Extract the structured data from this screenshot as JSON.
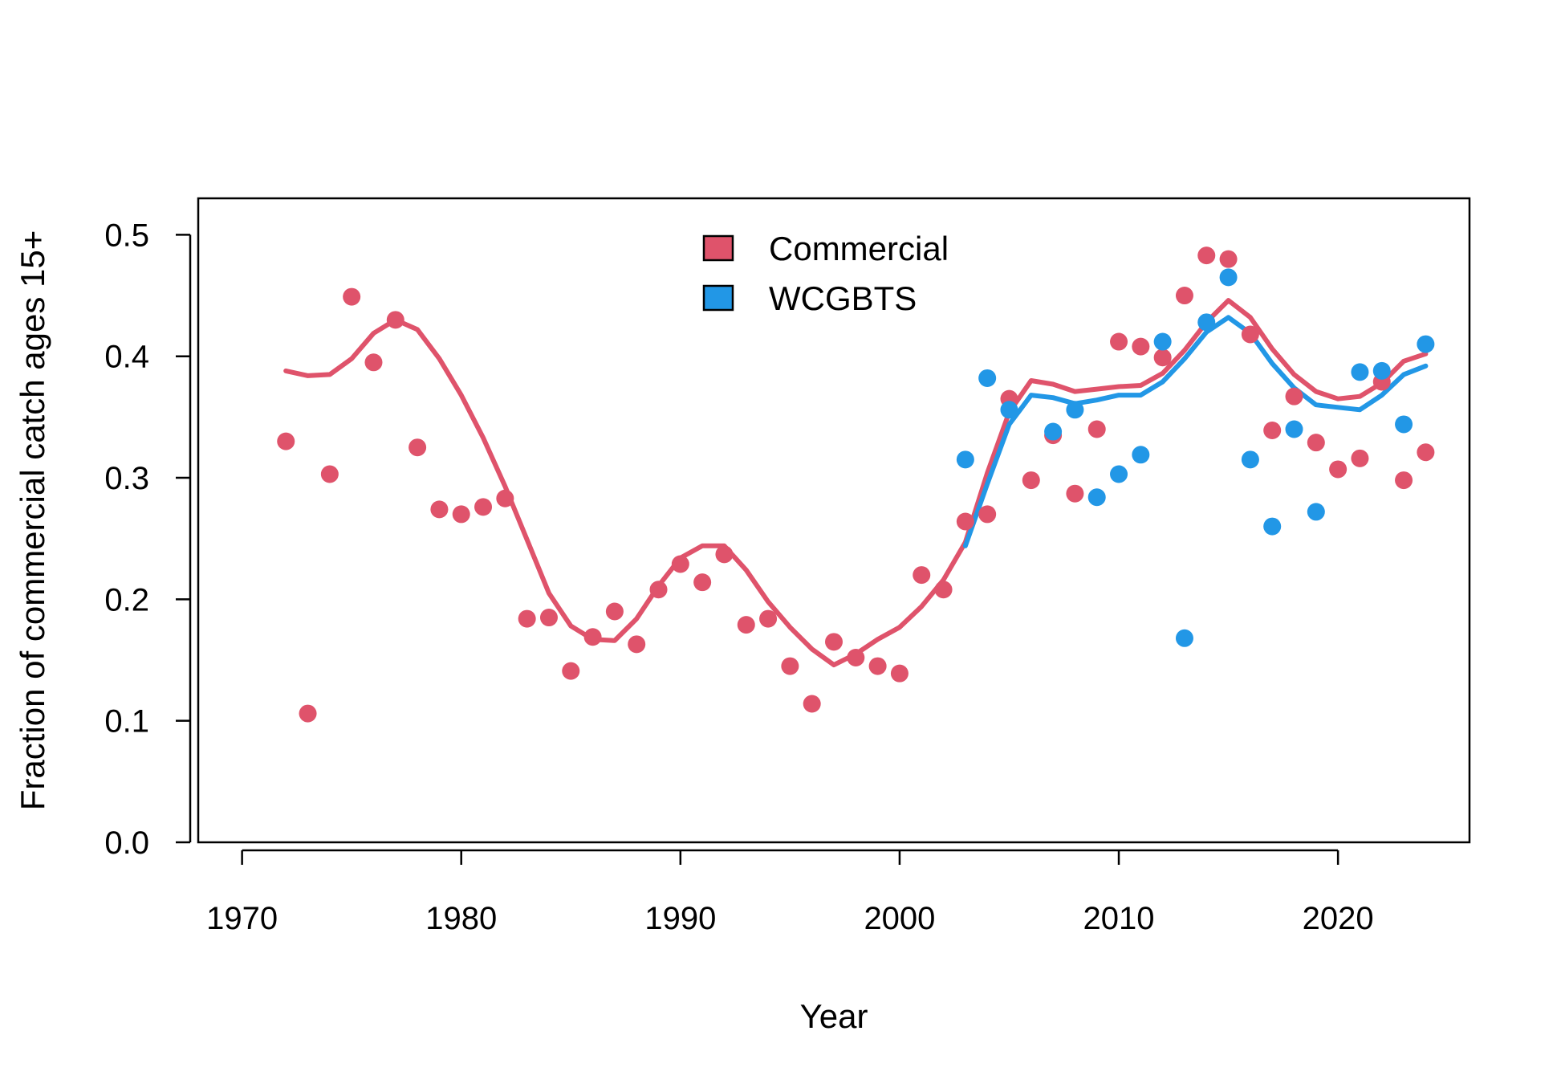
{
  "chart_data": {
    "type": "scatter",
    "title": "",
    "xlabel": "Year",
    "ylabel": "Fraction of commercial catch ages 15+",
    "xlim": [
      1968,
      2026
    ],
    "ylim": [
      0,
      0.53
    ],
    "xticks": [
      1970,
      1980,
      1990,
      2000,
      2010,
      2020
    ],
    "yticks": [
      "0.0",
      "0.1",
      "0.2",
      "0.3",
      "0.4",
      "0.5"
    ],
    "grid": false,
    "legend_position": "top-center",
    "series": [
      {
        "name": "Commercial",
        "color": "#df536b",
        "points": {
          "x": [
            1972,
            1973,
            1974,
            1975,
            1976,
            1977,
            1978,
            1979,
            1980,
            1981,
            1982,
            1983,
            1984,
            1985,
            1986,
            1987,
            1988,
            1989,
            1990,
            1991,
            1992,
            1993,
            1994,
            1995,
            1996,
            1997,
            1998,
            1999,
            2000,
            2001,
            2002,
            2003,
            2004,
            2005,
            2006,
            2007,
            2008,
            2009,
            2010,
            2011,
            2012,
            2013,
            2014,
            2015,
            2016,
            2017,
            2018,
            2019,
            2020,
            2021,
            2022,
            2023,
            2024
          ],
          "y": [
            0.33,
            0.106,
            0.303,
            0.449,
            0.395,
            0.43,
            0.325,
            0.274,
            0.27,
            0.276,
            0.283,
            0.184,
            0.185,
            0.141,
            0.169,
            0.19,
            0.163,
            0.208,
            0.229,
            0.214,
            0.237,
            0.179,
            0.184,
            0.145,
            0.114,
            0.165,
            0.152,
            0.145,
            0.139,
            0.22,
            0.208,
            0.264,
            0.27,
            0.365,
            0.298,
            0.335,
            0.287,
            0.34,
            0.412,
            0.408,
            0.399,
            0.45,
            0.483,
            0.48,
            0.418,
            0.339,
            0.367,
            0.329,
            0.307,
            0.316,
            0.379,
            0.298,
            0.321
          ]
        },
        "fit": {
          "x": [
            1972,
            1973,
            1974,
            1975,
            1976,
            1977,
            1978,
            1979,
            1980,
            1981,
            1982,
            1983,
            1984,
            1985,
            1986,
            1987,
            1988,
            1989,
            1990,
            1991,
            1992,
            1993,
            1994,
            1995,
            1996,
            1997,
            1998,
            1999,
            2000,
            2001,
            2002,
            2003,
            2004,
            2005,
            2006,
            2007,
            2008,
            2009,
            2010,
            2011,
            2012,
            2013,
            2014,
            2015,
            2016,
            2017,
            2018,
            2019,
            2020,
            2021,
            2022,
            2023,
            2024
          ],
          "y": [
            0.388,
            0.384,
            0.385,
            0.398,
            0.419,
            0.43,
            0.422,
            0.398,
            0.368,
            0.333,
            0.293,
            0.249,
            0.205,
            0.178,
            0.167,
            0.166,
            0.184,
            0.211,
            0.234,
            0.244,
            0.244,
            0.224,
            0.198,
            0.177,
            0.159,
            0.146,
            0.155,
            0.167,
            0.177,
            0.194,
            0.216,
            0.247,
            0.304,
            0.354,
            0.38,
            0.377,
            0.371,
            0.373,
            0.375,
            0.376,
            0.386,
            0.405,
            0.428,
            0.446,
            0.432,
            0.406,
            0.385,
            0.371,
            0.365,
            0.367,
            0.378,
            0.396,
            0.402
          ]
        }
      },
      {
        "name": "WCGBTS",
        "color": "#2297e6",
        "points": {
          "x": [
            2003,
            2004,
            2005,
            2007,
            2008,
            2009,
            2010,
            2011,
            2012,
            2013,
            2014,
            2015,
            2016,
            2017,
            2018,
            2019,
            2021,
            2022,
            2023,
            2024
          ],
          "y": [
            0.315,
            0.382,
            0.356,
            0.338,
            0.356,
            0.284,
            0.303,
            0.319,
            0.412,
            0.168,
            0.428,
            0.465,
            0.315,
            0.26,
            0.34,
            0.272,
            0.387,
            0.388,
            0.344,
            0.41
          ]
        },
        "fit": {
          "x": [
            2003,
            2004,
            2005,
            2006,
            2007,
            2008,
            2009,
            2010,
            2011,
            2012,
            2013,
            2014,
            2015,
            2016,
            2017,
            2018,
            2019,
            2020,
            2021,
            2022,
            2023,
            2024
          ],
          "y": [
            0.244,
            0.295,
            0.344,
            0.368,
            0.366,
            0.361,
            0.364,
            0.368,
            0.368,
            0.379,
            0.398,
            0.42,
            0.432,
            0.419,
            0.394,
            0.374,
            0.36,
            0.358,
            0.356,
            0.368,
            0.385,
            0.392
          ]
        }
      }
    ]
  }
}
